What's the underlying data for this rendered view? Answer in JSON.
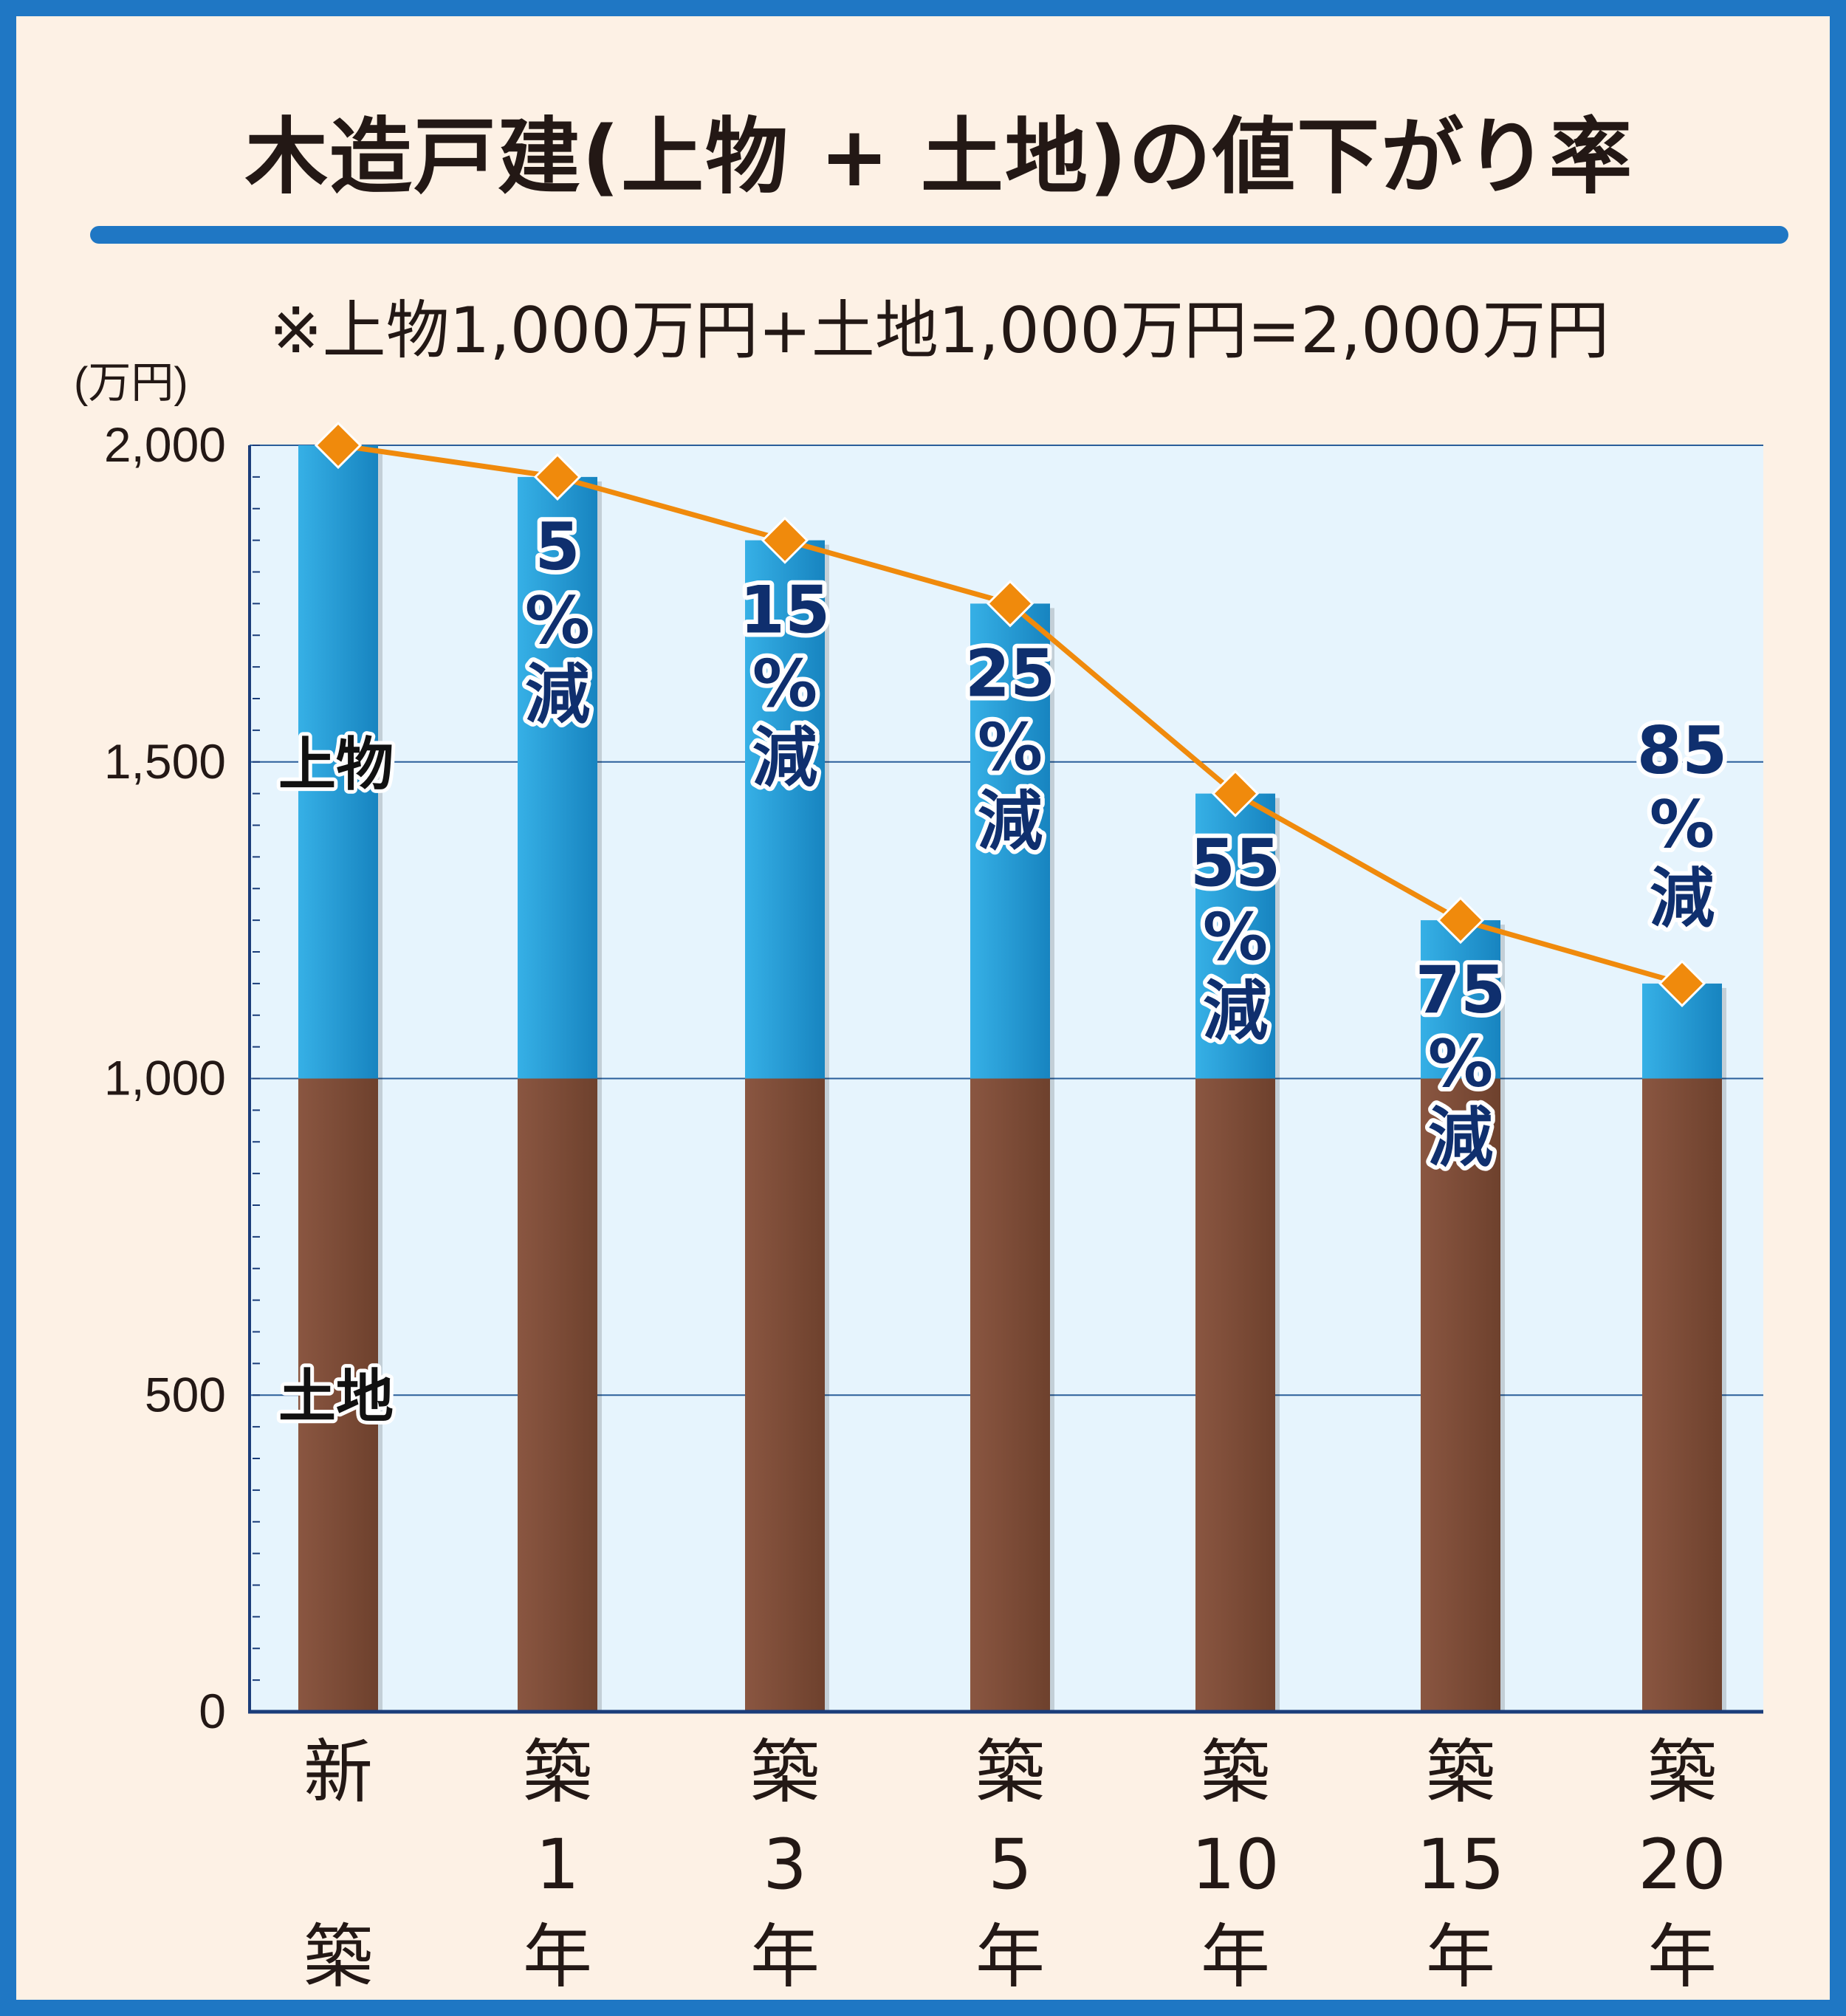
{
  "title": "木造戸建(上物 + 土地)の値下がり率",
  "note": "※上物1,000万円+土地1,000万円=2,000万円",
  "colors": {
    "frame": "#1f77c4",
    "background": "#fdf1e5",
    "plot_background": "#e6f4fd",
    "building": "#1a96d1",
    "land": "#7a4a34",
    "line": "#f08a0c",
    "label_text": "#0f2f6e"
  },
  "chart_data": {
    "type": "bar",
    "stacked": true,
    "unit_label": "(万円)",
    "ylim": [
      0,
      2000
    ],
    "y_ticks": [
      {
        "value": 0,
        "label": "0"
      },
      {
        "value": 500,
        "label": "500"
      },
      {
        "value": 1000,
        "label": "1,000"
      },
      {
        "value": 1500,
        "label": "1,500"
      },
      {
        "value": 2000,
        "label": "2,000"
      }
    ],
    "grid": true,
    "categories": [
      [
        "新",
        "",
        "築"
      ],
      [
        "築",
        "1",
        "年"
      ],
      [
        "築",
        "3",
        "年"
      ],
      [
        "築",
        "5",
        "年"
      ],
      [
        "築",
        "10",
        "年"
      ],
      [
        "築",
        "15",
        "年"
      ],
      [
        "築",
        "20",
        "年"
      ]
    ],
    "series": [
      {
        "name": "土地",
        "values": [
          1000,
          1000,
          1000,
          1000,
          1000,
          1000,
          1000
        ]
      },
      {
        "name": "上物",
        "values": [
          1000,
          950,
          850,
          750,
          450,
          250,
          150
        ]
      }
    ],
    "total_line": {
      "values": [
        2000,
        1950,
        1850,
        1750,
        1450,
        1250,
        1150
      ]
    },
    "reduction_labels": [
      null,
      [
        "5",
        "%",
        "減"
      ],
      [
        "15",
        "%",
        "減"
      ],
      [
        "25",
        "%",
        "減"
      ],
      [
        "55",
        "%",
        "減"
      ],
      [
        "75",
        "%",
        "減"
      ],
      [
        "85",
        "%",
        "減"
      ]
    ]
  }
}
